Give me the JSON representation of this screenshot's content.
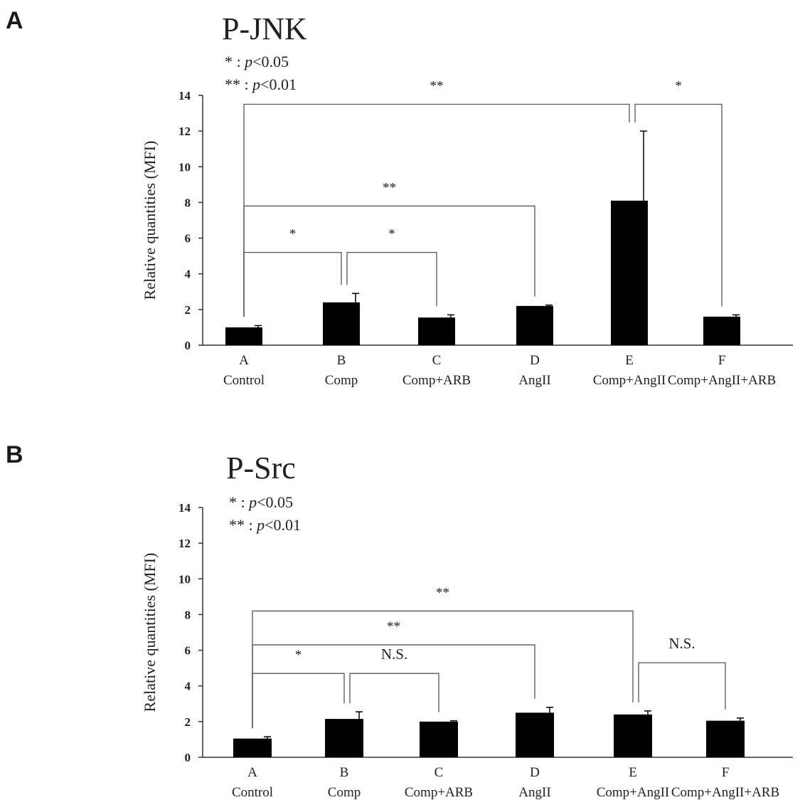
{
  "panels": [
    {
      "letter": "A",
      "title": "P-JNK",
      "legend": [
        {
          "symbol": "*",
          "text": " : ",
          "p": "p",
          "rest": "<0.05"
        },
        {
          "symbol": "**",
          "text": " : ",
          "p": "p",
          "rest": "<0.01"
        }
      ],
      "brackets": [
        {
          "from": 0,
          "to": 4,
          "y": 13.5,
          "label": "**"
        },
        {
          "from": 4,
          "to": 5,
          "y": 13.5,
          "label": "*"
        },
        {
          "from": 0,
          "to": 3,
          "y": 7.8,
          "label": "**"
        },
        {
          "from": 0,
          "to": 1,
          "y": 5.2,
          "label": "*"
        },
        {
          "from": 1,
          "to": 2,
          "y": 5.2,
          "label": "*"
        }
      ]
    },
    {
      "letter": "B",
      "title": "P-Src",
      "legend": [
        {
          "symbol": "*",
          "text": " : ",
          "p": "p",
          "rest": "<0.05"
        },
        {
          "symbol": "**",
          "text": " : ",
          "p": "p",
          "rest": "<0.01"
        }
      ],
      "brackets": [
        {
          "from": 0,
          "to": 4,
          "y": 8.2,
          "label": "**"
        },
        {
          "from": 0,
          "to": 3,
          "y": 6.3,
          "label": "**"
        },
        {
          "from": 0,
          "to": 1,
          "y": 4.7,
          "label": "*"
        },
        {
          "from": 1,
          "to": 2,
          "y": 4.7,
          "label": "N.S."
        },
        {
          "from": 4,
          "to": 5,
          "y": 5.3,
          "label": "N.S."
        }
      ]
    }
  ],
  "chart_data": [
    {
      "type": "bar",
      "title": "P-JNK",
      "ylabel": "Relative quantities (MFI)",
      "ylim": [
        0,
        14
      ],
      "yticks": [
        0,
        2,
        4,
        6,
        8,
        10,
        12,
        14
      ],
      "categories": [
        "A",
        "B",
        "C",
        "D",
        "E",
        "F"
      ],
      "category_names": [
        "Control",
        "Comp",
        "Comp+ARB",
        "AngII",
        "Comp+AngII",
        "Comp+AngII+ARB"
      ],
      "values": [
        1.0,
        2.4,
        1.55,
        2.2,
        8.1,
        1.6
      ],
      "errors": [
        0.1,
        0.5,
        0.15,
        0.05,
        3.9,
        0.1
      ],
      "grid": false
    },
    {
      "type": "bar",
      "title": "P-Src",
      "ylabel": "Relative quantities (MFI)",
      "ylim": [
        0,
        14
      ],
      "yticks": [
        0,
        2,
        4,
        6,
        8,
        10,
        12,
        14
      ],
      "categories": [
        "A",
        "B",
        "C",
        "D",
        "E",
        "F"
      ],
      "category_names": [
        "Control",
        "Comp",
        "Comp+ARB",
        "AngII",
        "Comp+AngII",
        "Comp+AngII+ARB"
      ],
      "values": [
        1.05,
        2.15,
        2.0,
        2.5,
        2.4,
        2.05
      ],
      "errors": [
        0.1,
        0.4,
        0.05,
        0.3,
        0.2,
        0.15
      ],
      "grid": false
    }
  ]
}
